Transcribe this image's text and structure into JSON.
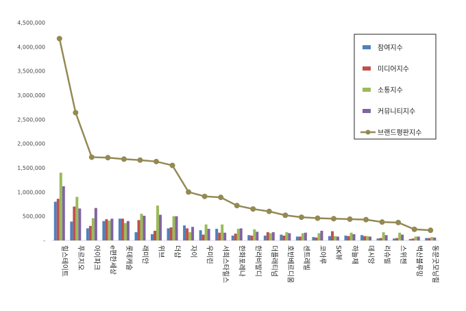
{
  "chart_data": {
    "type": "bar",
    "categories": [
      "힐스테이트",
      "푸르지오",
      "아이파크",
      "e편한세상",
      "롯데캐슬",
      "래미안",
      "위브",
      "더샵",
      "자이",
      "우미린",
      "서희스타힐스",
      "한화포레나",
      "한라비발디",
      "더플래티넘",
      "호반베르디움",
      "센트레빌",
      "코아루",
      "SK뷰",
      "하늘채",
      "데시앙",
      "리슈빌",
      "스위첸",
      "벽산블루밍",
      "동문굿모닝힐"
    ],
    "series": [
      {
        "name": "참여지수",
        "color": "#4f81bd",
        "values": [
          800000,
          390000,
          250000,
          400000,
          450000,
          170000,
          130000,
          250000,
          310000,
          210000,
          240000,
          100000,
          110000,
          100000,
          120000,
          80000,
          70000,
          90000,
          100000,
          110000,
          40000,
          40000,
          30000,
          50000
        ]
      },
      {
        "name": "미디어지수",
        "color": "#c0504d",
        "values": [
          860000,
          700000,
          300000,
          440000,
          450000,
          420000,
          200000,
          270000,
          250000,
          120000,
          160000,
          140000,
          100000,
          170000,
          100000,
          80000,
          60000,
          190000,
          90000,
          90000,
          50000,
          50000,
          40000,
          50000
        ]
      },
      {
        "name": "소통지수",
        "color": "#9bbb59",
        "values": [
          1400000,
          900000,
          460000,
          410000,
          360000,
          550000,
          720000,
          500000,
          170000,
          330000,
          330000,
          240000,
          230000,
          150000,
          170000,
          150000,
          150000,
          90000,
          160000,
          90000,
          170000,
          160000,
          80000,
          70000
        ]
      },
      {
        "name": "커뮤니티지수",
        "color": "#8064a2",
        "values": [
          1120000,
          660000,
          670000,
          450000,
          400000,
          510000,
          530000,
          500000,
          280000,
          240000,
          160000,
          250000,
          180000,
          170000,
          150000,
          160000,
          200000,
          80000,
          130000,
          80000,
          110000,
          120000,
          80000,
          60000
        ]
      },
      {
        "name": "브랜드평판지수",
        "color": "#938953",
        "type": "line",
        "values": [
          4170000,
          2640000,
          1720000,
          1710000,
          1680000,
          1660000,
          1630000,
          1550000,
          1000000,
          910000,
          890000,
          720000,
          650000,
          600000,
          520000,
          480000,
          460000,
          450000,
          440000,
          430000,
          380000,
          370000,
          230000,
          210000
        ]
      }
    ],
    "y_ticks": [
      "-",
      "500,000",
      "1,000,000",
      "1,500,000",
      "2,000,000",
      "2,500,000",
      "3,000,000",
      "3,500,000",
      "4,000,000",
      "4,500,000"
    ],
    "ylim": [
      0,
      4500000
    ],
    "grid": false,
    "legend_position": "top-right"
  }
}
